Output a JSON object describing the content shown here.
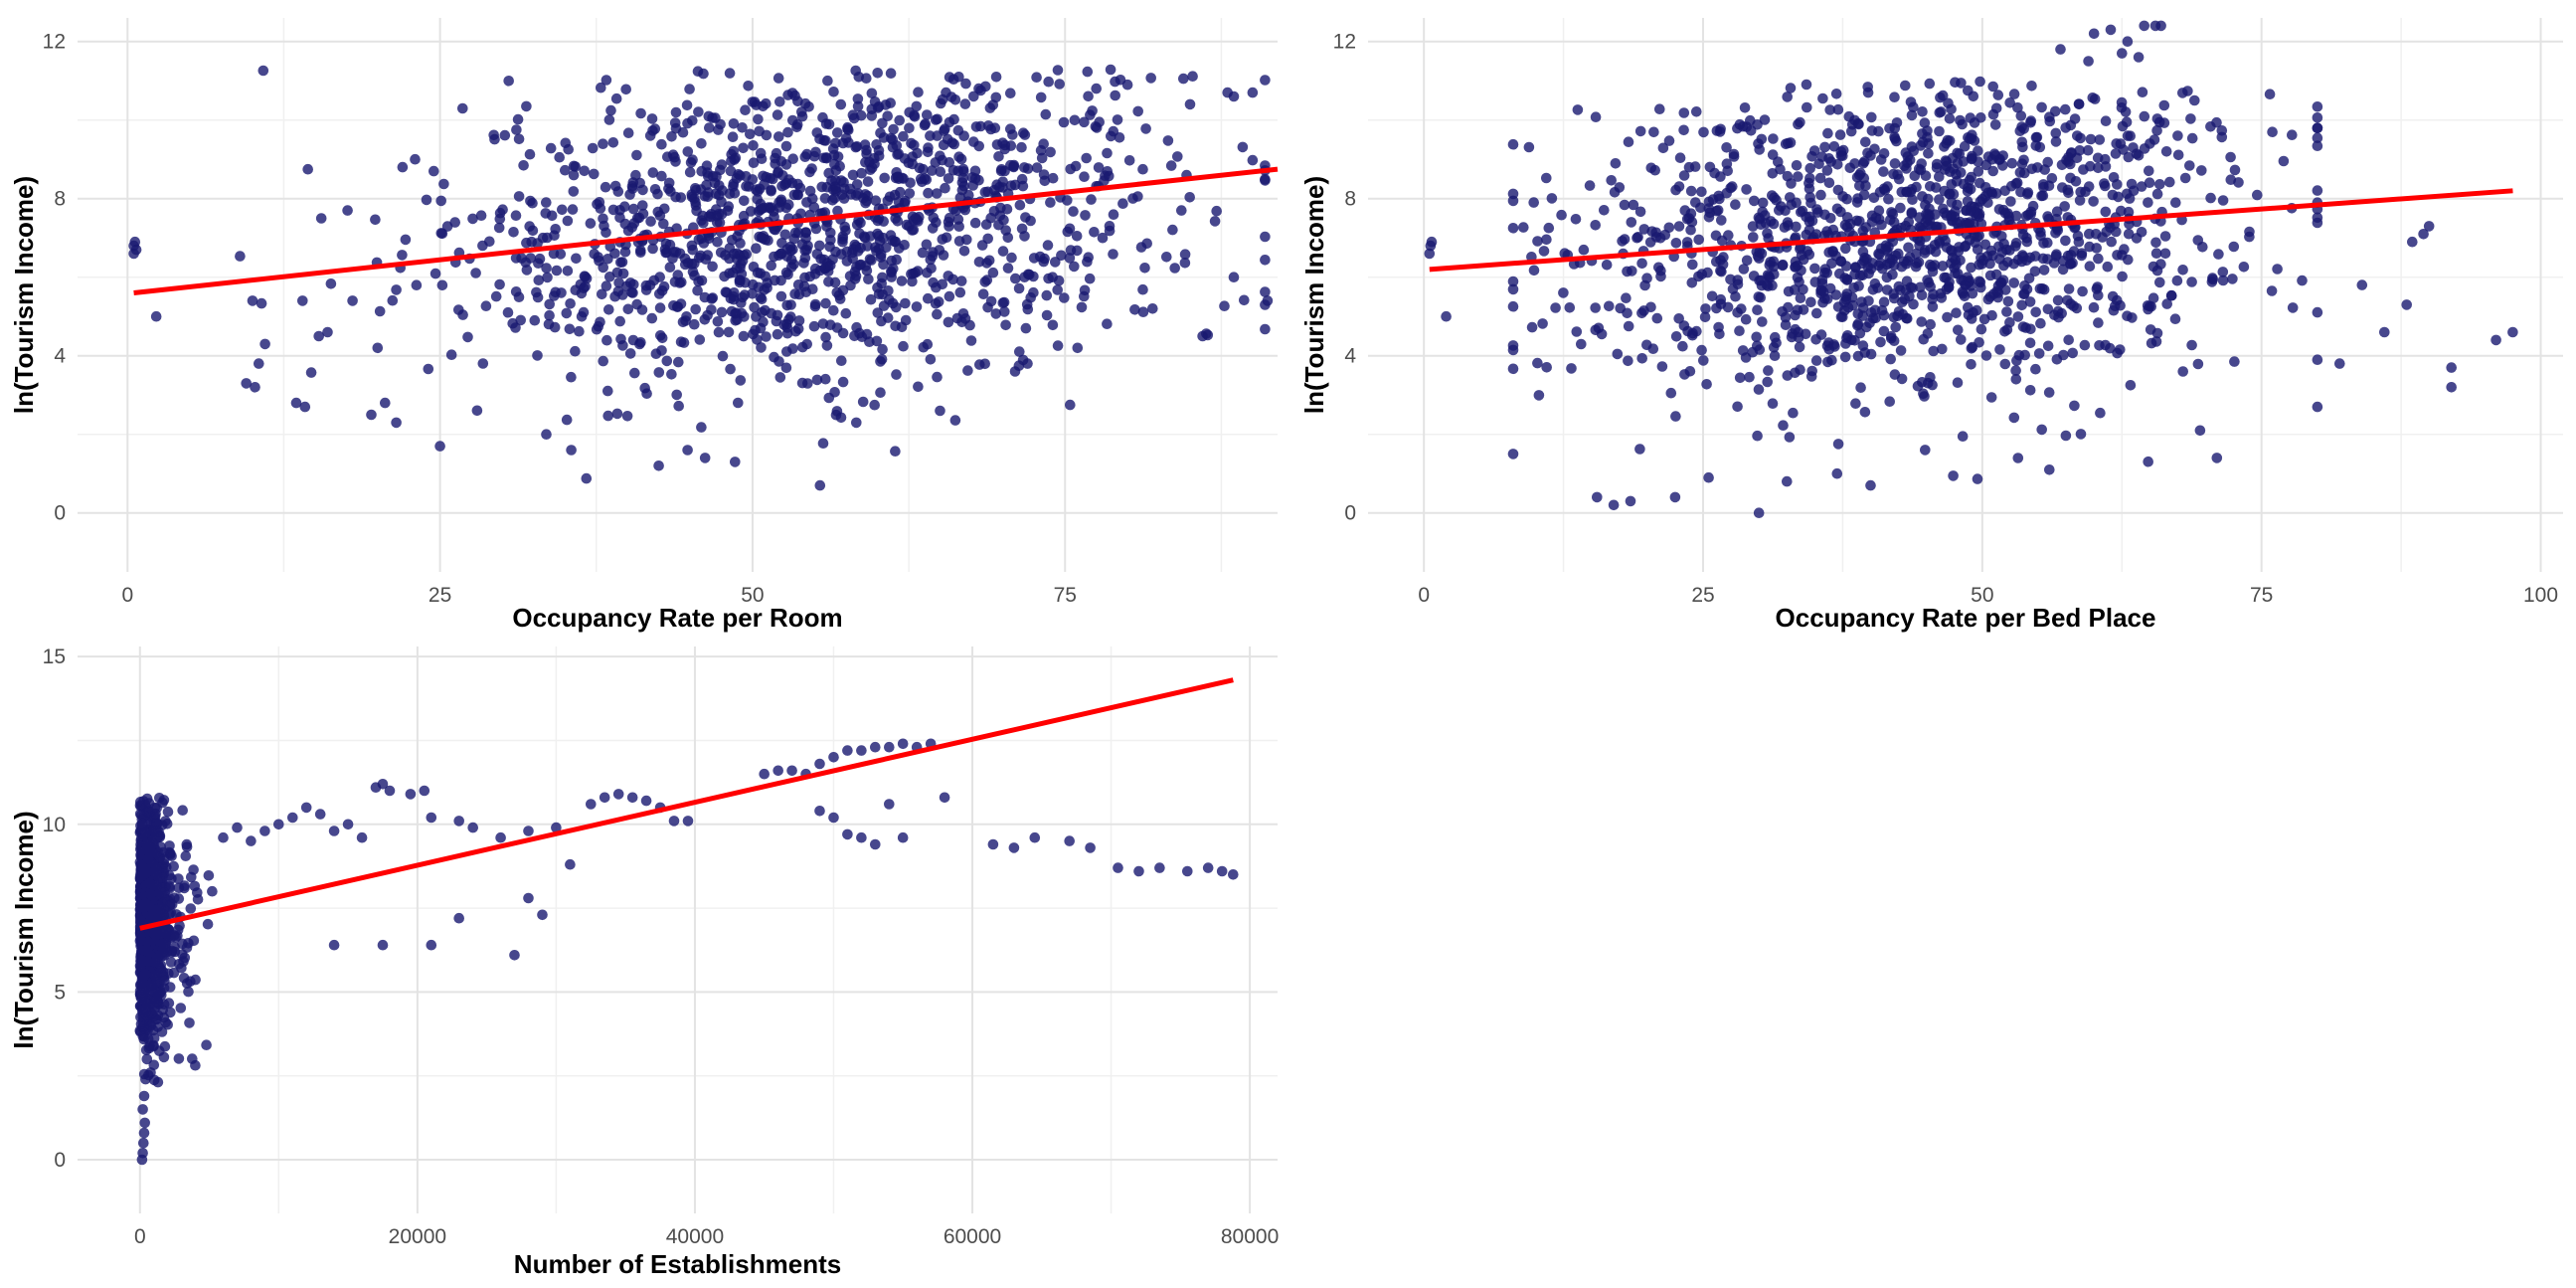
{
  "chart_data": [
    {
      "type": "scatter",
      "title": "",
      "xlabel": "Occupancy Rate per Room",
      "ylabel": "ln(Tourism Income)",
      "xlim": [
        -4,
        92
      ],
      "ylim": [
        -1.5,
        12.6
      ],
      "x_ticks": [
        0,
        25,
        50,
        75
      ],
      "x_tick_labels": [
        "0",
        "25",
        "50",
        "75"
      ],
      "y_ticks": [
        0,
        4,
        8,
        12
      ],
      "y_tick_labels": [
        "0",
        "4",
        "8",
        "12"
      ],
      "grid": true,
      "point_color": "#191970",
      "fit_color": "#ff0000",
      "fit_line": {
        "x": [
          0.5,
          92
        ],
        "y": [
          5.6,
          8.75
        ]
      },
      "cloud": {
        "n": 1400,
        "x_mean": 55,
        "x_sd": 14,
        "y_base": 5.6,
        "y_slope": 0.034,
        "y_sd": 2.0,
        "x_min": 9,
        "x_max": 91,
        "y_min": 0.7,
        "y_max": 11.3
      },
      "points": [
        [
          0.5,
          6.6
        ],
        [
          0.5,
          6.8
        ],
        [
          0.6,
          6.9
        ],
        [
          0.7,
          6.7
        ],
        [
          2.3,
          5.0
        ],
        [
          9.5,
          3.3
        ],
        [
          10.2,
          3.2
        ],
        [
          10.5,
          3.8
        ],
        [
          11.0,
          4.3
        ],
        [
          10.0,
          5.4
        ],
        [
          13.5,
          2.8
        ],
        [
          14.2,
          2.7
        ],
        [
          14.0,
          5.4
        ],
        [
          15.3,
          4.5
        ],
        [
          15.5,
          7.5
        ],
        [
          16.0,
          4.6
        ],
        [
          17.6,
          7.7
        ],
        [
          18.0,
          5.4
        ],
        [
          19.5,
          2.5
        ],
        [
          20.6,
          2.8
        ],
        [
          21.5,
          2.3
        ],
        [
          20.0,
          4.2
        ],
        [
          22.0,
          8.8
        ],
        [
          23.0,
          9.0
        ],
        [
          24.5,
          8.7
        ],
        [
          25.0,
          1.7
        ],
        [
          33.5,
          2.0
        ],
        [
          35.5,
          1.6
        ],
        [
          42.5,
          1.2
        ],
        [
          44.8,
          1.6
        ],
        [
          46.2,
          1.4
        ],
        [
          48.6,
          1.3
        ],
        [
          55.4,
          0.7
        ],
        [
          58.3,
          2.3
        ],
        [
          65.0,
          2.6
        ],
        [
          71.0,
          3.6
        ],
        [
          76.0,
          4.2
        ],
        [
          82.0,
          5.2
        ],
        [
          86.0,
          4.5
        ],
        [
          88.5,
          6.0
        ],
        [
          88.5,
          10.6
        ],
        [
          90.0,
          10.7
        ],
        [
          91.2,
          5.4
        ],
        [
          88.0,
          10.7
        ],
        [
          85.0,
          10.4
        ],
        [
          80.0,
          10.9
        ],
        [
          77.5,
          10.8
        ],
        [
          69.5,
          11.1
        ],
        [
          66.5,
          11.1
        ],
        [
          58.5,
          11.1
        ],
        [
          56.0,
          11.0
        ],
        [
          60.0,
          11.2
        ],
        [
          72.0,
          3.8
        ],
        [
          74.0,
          6.0
        ],
        [
          78.0,
          7.0
        ]
      ]
    },
    {
      "type": "scatter",
      "title": "",
      "xlabel": "Occupancy Rate per Bed Place",
      "ylabel": "ln(Tourism Income)",
      "xlim": [
        -5,
        102
      ],
      "ylim": [
        -1.5,
        12.6
      ],
      "x_ticks": [
        0,
        25,
        50,
        75,
        100
      ],
      "x_tick_labels": [
        "0",
        "25",
        "50",
        "75",
        "100"
      ],
      "y_ticks": [
        0,
        4,
        8,
        12
      ],
      "y_tick_labels": [
        "0",
        "4",
        "8",
        "12"
      ],
      "grid": true,
      "point_color": "#191970",
      "fit_color": "#ff0000",
      "fit_line": {
        "x": [
          0.5,
          97.5
        ],
        "y": [
          6.2,
          8.2
        ]
      },
      "cloud": {
        "n": 1400,
        "x_mean": 43,
        "x_sd": 15,
        "y_base": 6.2,
        "y_slope": 0.02,
        "y_sd": 2.0,
        "x_min": 8,
        "x_max": 80,
        "y_min": 0.7,
        "y_max": 11.0
      },
      "points": [
        [
          0.5,
          6.6
        ],
        [
          0.6,
          6.8
        ],
        [
          0.7,
          6.9
        ],
        [
          2.0,
          5.0
        ],
        [
          15.5,
          0.4
        ],
        [
          17.0,
          0.2
        ],
        [
          18.5,
          0.3
        ],
        [
          22.5,
          0.4
        ],
        [
          25.5,
          0.9
        ],
        [
          30.0,
          0.0
        ],
        [
          32.5,
          0.8
        ],
        [
          37.0,
          1.0
        ],
        [
          40.0,
          0.7
        ],
        [
          56.0,
          1.1
        ],
        [
          71.0,
          1.4
        ],
        [
          69.5,
          2.1
        ],
        [
          80.0,
          2.7
        ],
        [
          92.0,
          3.2
        ],
        [
          92.0,
          3.7
        ],
        [
          96.0,
          4.4
        ],
        [
          97.5,
          4.6
        ],
        [
          88.0,
          5.3
        ],
        [
          84.0,
          5.8
        ],
        [
          86.0,
          4.6
        ],
        [
          88.5,
          6.9
        ],
        [
          89.5,
          7.1
        ],
        [
          90.0,
          7.3
        ],
        [
          80.0,
          3.9
        ],
        [
          82.0,
          3.8
        ],
        [
          60.0,
          12.2
        ],
        [
          61.5,
          12.3
        ],
        [
          63.0,
          12.0
        ],
        [
          64.5,
          12.4
        ],
        [
          65.5,
          12.4
        ],
        [
          62.5,
          11.7
        ],
        [
          64.0,
          11.6
        ],
        [
          57.0,
          11.8
        ],
        [
          59.5,
          11.5
        ],
        [
          66.0,
          12.4
        ],
        [
          60.5,
          9.5
        ],
        [
          62.0,
          9.4
        ],
        [
          63.5,
          9.3
        ],
        [
          65.0,
          9.4
        ],
        [
          66.5,
          9.2
        ],
        [
          58.5,
          9.6
        ],
        [
          61.0,
          9.0
        ],
        [
          64.0,
          9.1
        ],
        [
          67.5,
          9.6
        ],
        [
          69.0,
          10.5
        ]
      ]
    },
    {
      "type": "scatter",
      "title": "",
      "xlabel": "Number of Establishments",
      "ylabel": "ln(Tourism Income)",
      "xlim": [
        -4500,
        82000
      ],
      "ylim": [
        -1.6,
        15.3
      ],
      "x_ticks": [
        0,
        20000,
        40000,
        60000,
        80000
      ],
      "x_tick_labels": [
        "0",
        "20000",
        "40000",
        "60000",
        "80000"
      ],
      "y_ticks": [
        0,
        5,
        10,
        15
      ],
      "y_tick_labels": [
        "0",
        "5",
        "10",
        "15"
      ],
      "grid": true,
      "point_color": "#191970",
      "fit_color": "#ff0000",
      "fit_line": {
        "x": [
          0,
          78800
        ],
        "y": [
          6.9,
          14.3
        ]
      },
      "cloud": {
        "n": 1200,
        "x_mean": 1200,
        "x_sd": 1300,
        "y_base": 7.2,
        "y_slope": 0.0002,
        "y_sd": 1.9,
        "x_min": 0,
        "x_max": 5200,
        "y_min": 0.0,
        "y_max": 10.8
      },
      "points": [
        [
          150,
          0.0
        ],
        [
          200,
          0.2
        ],
        [
          250,
          0.5
        ],
        [
          300,
          0.8
        ],
        [
          350,
          1.1
        ],
        [
          200,
          1.5
        ],
        [
          300,
          1.9
        ],
        [
          400,
          2.4
        ],
        [
          500,
          3.0
        ],
        [
          600,
          3.6
        ],
        [
          6000,
          9.6
        ],
        [
          7000,
          9.9
        ],
        [
          8000,
          9.5
        ],
        [
          9000,
          9.8
        ],
        [
          10000,
          10.0
        ],
        [
          11000,
          10.2
        ],
        [
          12000,
          10.5
        ],
        [
          13000,
          10.3
        ],
        [
          14000,
          9.8
        ],
        [
          15000,
          10.0
        ],
        [
          16000,
          9.6
        ],
        [
          17000,
          11.1
        ],
        [
          17500,
          11.2
        ],
        [
          18000,
          11.0
        ],
        [
          19500,
          10.9
        ],
        [
          20500,
          11.0
        ],
        [
          21000,
          10.2
        ],
        [
          23000,
          10.1
        ],
        [
          24000,
          9.9
        ],
        [
          26000,
          9.6
        ],
        [
          28000,
          9.8
        ],
        [
          30000,
          9.9
        ],
        [
          31000,
          8.8
        ],
        [
          14000,
          6.4
        ],
        [
          17500,
          6.4
        ],
        [
          21000,
          6.4
        ],
        [
          23000,
          7.2
        ],
        [
          27000,
          6.1
        ],
        [
          28000,
          7.8
        ],
        [
          29000,
          7.3
        ],
        [
          32500,
          10.6
        ],
        [
          33500,
          10.8
        ],
        [
          34500,
          10.9
        ],
        [
          35500,
          10.8
        ],
        [
          36500,
          10.7
        ],
        [
          37500,
          10.5
        ],
        [
          38500,
          10.1
        ],
        [
          39500,
          10.1
        ],
        [
          45000,
          11.5
        ],
        [
          46000,
          11.6
        ],
        [
          47000,
          11.6
        ],
        [
          48000,
          11.5
        ],
        [
          49000,
          11.8
        ],
        [
          50000,
          12.0
        ],
        [
          51000,
          12.2
        ],
        [
          52000,
          12.2
        ],
        [
          53000,
          12.3
        ],
        [
          54000,
          12.3
        ],
        [
          55000,
          12.4
        ],
        [
          56000,
          12.3
        ],
        [
          57000,
          12.4
        ],
        [
          49000,
          10.4
        ],
        [
          50000,
          10.2
        ],
        [
          51000,
          9.7
        ],
        [
          52000,
          9.6
        ],
        [
          53000,
          9.4
        ],
        [
          54000,
          10.6
        ],
        [
          55000,
          9.6
        ],
        [
          58000,
          10.8
        ],
        [
          61500,
          9.4
        ],
        [
          63000,
          9.3
        ],
        [
          64500,
          9.6
        ],
        [
          67000,
          9.5
        ],
        [
          68500,
          9.3
        ],
        [
          70500,
          8.7
        ],
        [
          72000,
          8.6
        ],
        [
          73500,
          8.7
        ],
        [
          75500,
          8.6
        ],
        [
          77000,
          8.7
        ],
        [
          78000,
          8.6
        ],
        [
          78800,
          8.5
        ]
      ]
    }
  ]
}
